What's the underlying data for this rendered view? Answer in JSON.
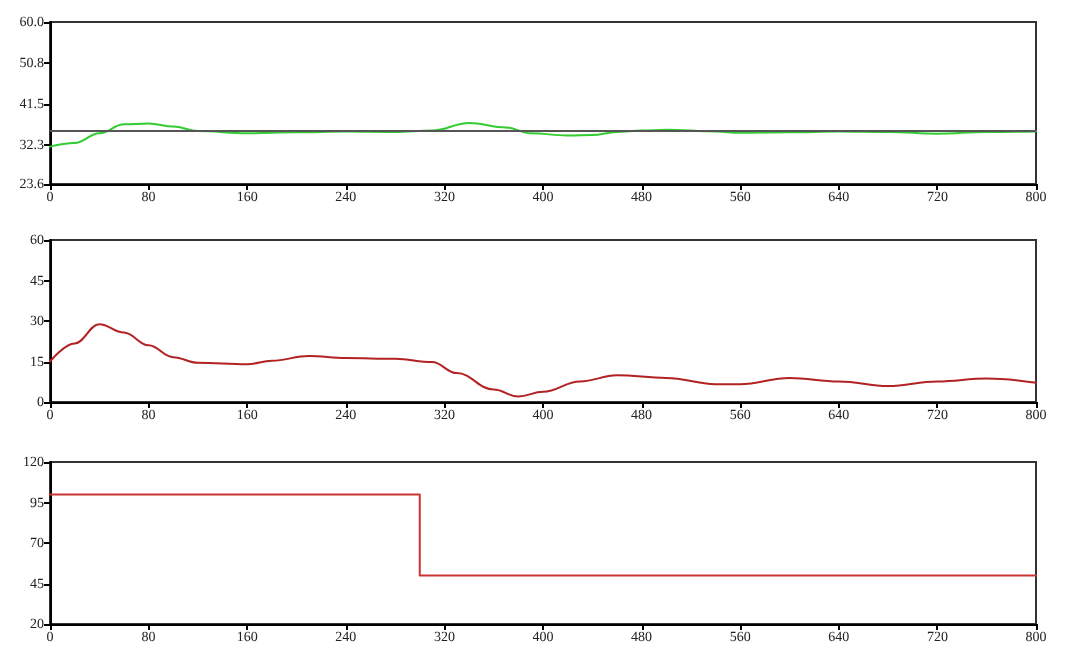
{
  "chart_data": [
    {
      "type": "line",
      "x": [
        0,
        20,
        40,
        60,
        80,
        100,
        120,
        160,
        200,
        240,
        280,
        310,
        340,
        370,
        390,
        420,
        440,
        460,
        480,
        500,
        540,
        560,
        600,
        640,
        680,
        720,
        760,
        800
      ],
      "series": [
        {
          "color": "#33cc33",
          "values": [
            32.0,
            32.8,
            35.0,
            37.0,
            37.2,
            36.5,
            35.5,
            35.0,
            35.2,
            35.4,
            35.3,
            35.6,
            37.3,
            36.3,
            35.0,
            34.5,
            34.6,
            35.3,
            35.6,
            35.8,
            35.4,
            35.1,
            35.2,
            35.4,
            35.3,
            34.9,
            35.3,
            35.4
          ]
        }
      ],
      "ref_lines": [
        {
          "axis": "y",
          "value": 35.4,
          "color": "#555555"
        }
      ],
      "xlim": [
        0,
        800
      ],
      "xticks": [
        0,
        80,
        160,
        240,
        320,
        400,
        480,
        560,
        640,
        720,
        800
      ],
      "ylim": [
        23.6,
        60.0
      ],
      "yticks": [
        23.6,
        32.3,
        41.5,
        50.8,
        {
          "value": 60.0,
          "label": "60.0"
        }
      ],
      "grid": false,
      "marker": "none",
      "line_style": "solid"
    },
    {
      "type": "line",
      "x": [
        0,
        20,
        40,
        60,
        80,
        100,
        120,
        160,
        180,
        210,
        240,
        280,
        310,
        330,
        360,
        380,
        400,
        430,
        460,
        500,
        540,
        560,
        600,
        640,
        680,
        720,
        760,
        800
      ],
      "series": [
        {
          "color": "#b22222",
          "values": [
            15,
            21.7,
            28.8,
            25.7,
            21,
            16.6,
            14.5,
            14,
            15.3,
            17,
            16.3,
            16,
            14.8,
            10.7,
            4.6,
            2,
            3.8,
            7.6,
            9.9,
            8.9,
            6.6,
            6.6,
            8.9,
            7.6,
            5.9,
            7.6,
            8.7,
            7.1
          ]
        }
      ],
      "xlim": [
        0,
        800
      ],
      "xticks": [
        0,
        80,
        160,
        240,
        320,
        400,
        480,
        560,
        640,
        720,
        800
      ],
      "ylim": [
        0,
        60
      ],
      "yticks": [
        0,
        15,
        30,
        45,
        60
      ],
      "grid": false,
      "marker": "none",
      "line_style": "solid"
    },
    {
      "type": "step",
      "x": [
        0,
        300,
        800
      ],
      "series": [
        {
          "color": "#cc3333",
          "values": [
            100,
            50,
            50
          ]
        }
      ],
      "xlim": [
        0,
        800
      ],
      "xticks": [
        0,
        80,
        160,
        240,
        320,
        400,
        480,
        560,
        640,
        720,
        800
      ],
      "ylim": [
        20,
        120
      ],
      "yticks": [
        20,
        45,
        70,
        95,
        120
      ],
      "grid": false,
      "marker": "none",
      "line_style": "solid"
    }
  ]
}
